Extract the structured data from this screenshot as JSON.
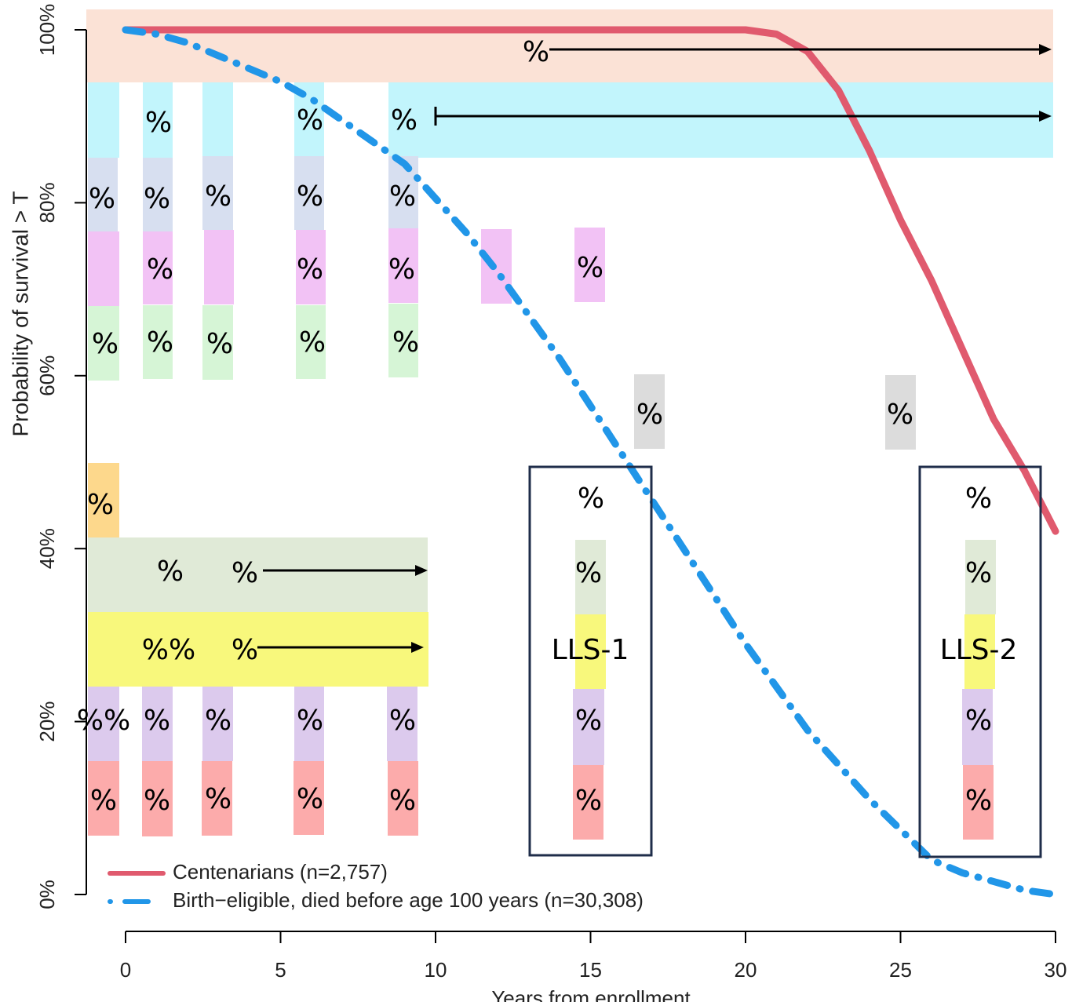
{
  "chart_data": {
    "type": "line",
    "x_label": "Years from enrollment",
    "y_label": "Probability of survival > T",
    "x": [
      0,
      1,
      2,
      3,
      4,
      5,
      6,
      7,
      8,
      9,
      10,
      11,
      12,
      13,
      14,
      15,
      16,
      17,
      18,
      19,
      20,
      21,
      22,
      23,
      24,
      25,
      26,
      27,
      28,
      29,
      30
    ],
    "series": [
      {
        "name": "Centenarians (n=2,757)",
        "color": "#e05a6e",
        "style": "solid",
        "values": [
          100,
          100,
          100,
          100,
          100,
          100,
          100,
          100,
          100,
          100,
          100,
          100,
          100,
          100,
          100,
          100,
          100,
          100,
          100,
          100,
          100,
          99.5,
          97.5,
          93,
          86,
          78,
          71,
          63,
          55,
          49,
          42
        ]
      },
      {
        "name": "Birth−eligible, died before age 100 years (n=30,308)",
        "color": "#2196e8",
        "style": "dashdot",
        "values": [
          100,
          99.5,
          98.5,
          97,
          95.5,
          94,
          92,
          89.5,
          87,
          84.5,
          80.5,
          76.5,
          72,
          67,
          62,
          56.5,
          51,
          45.5,
          40,
          34.5,
          29,
          24,
          19,
          15,
          11,
          7.5,
          4,
          2.5,
          1.5,
          0.5,
          0
        ]
      }
    ],
    "xlim": [
      0,
      30
    ],
    "xticks": [
      0,
      5,
      10,
      15,
      20,
      25,
      30
    ],
    "ylim": [
      0,
      100
    ],
    "yticks": [
      {
        "value": 0,
        "label": "0%"
      },
      {
        "value": 20,
        "label": "20%"
      },
      {
        "value": 40,
        "label": "40%"
      },
      {
        "value": 60,
        "label": "60%"
      },
      {
        "value": 80,
        "label": "80%"
      },
      {
        "value": 100,
        "label": "100%"
      }
    ],
    "legend": "bottom-left",
    "annotations": [
      "%",
      "%",
      "%",
      "%",
      "%",
      "%",
      "%",
      "%",
      "%",
      "%",
      "%",
      "%",
      "%",
      "%",
      "%",
      "%",
      "%",
      "%",
      "%",
      "%",
      "%",
      "%",
      "%",
      "%%",
      "%",
      "%%",
      "%",
      "%",
      "%",
      "%",
      "%",
      "%",
      "%",
      "%",
      "%",
      "%",
      "%",
      "LLS-1",
      "%",
      "%",
      "%",
      "%",
      "LLS-2",
      "%",
      "%",
      "%",
      "%"
    ]
  }
}
